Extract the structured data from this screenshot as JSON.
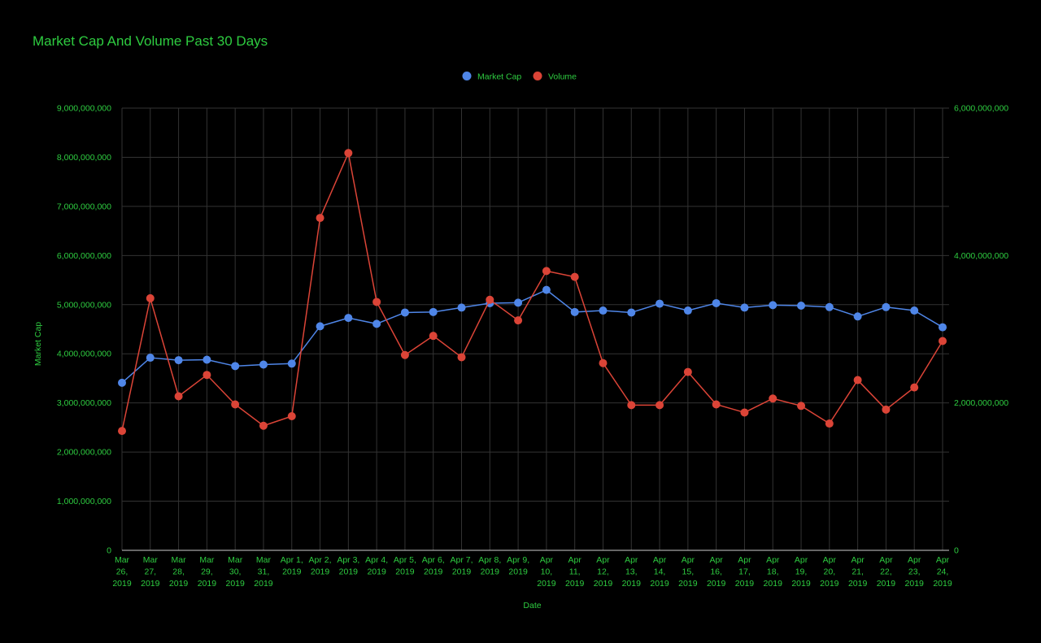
{
  "colors": {
    "background": "#000000",
    "text": "#2ecc40",
    "grid": "#333333",
    "baseline": "#cccccc",
    "market_cap": "#4f86e8",
    "volume": "#db4437"
  },
  "chart_data": {
    "type": "line",
    "title": "Market Cap And Volume Past 30 Days",
    "xlabel": "Date",
    "ylabel": "Market Cap",
    "ylabel_right": "",
    "ylim": [
      0,
      9000000000
    ],
    "ylim_right": [
      0,
      6000000000
    ],
    "yticks": [
      "0",
      "1,000,000,000",
      "2,000,000,000",
      "3,000,000,000",
      "4,000,000,000",
      "5,000,000,000",
      "6,000,000,000",
      "7,000,000,000",
      "8,000,000,000",
      "9,000,000,000"
    ],
    "yticks_right": [
      "0",
      "2,000,000,000",
      "4,000,000,000",
      "6,000,000,000"
    ],
    "legend_position": "top",
    "grid": true,
    "categories": [
      [
        "Mar",
        "26,",
        "2019"
      ],
      [
        "Mar",
        "27,",
        "2019"
      ],
      [
        "Mar",
        "28,",
        "2019"
      ],
      [
        "Mar",
        "29,",
        "2019"
      ],
      [
        "Mar",
        "30,",
        "2019"
      ],
      [
        "Mar",
        "31,",
        "2019"
      ],
      [
        "Apr 1,",
        "2019"
      ],
      [
        "Apr 2,",
        "2019"
      ],
      [
        "Apr 3,",
        "2019"
      ],
      [
        "Apr 4,",
        "2019"
      ],
      [
        "Apr 5,",
        "2019"
      ],
      [
        "Apr 6,",
        "2019"
      ],
      [
        "Apr 7,",
        "2019"
      ],
      [
        "Apr 8,",
        "2019"
      ],
      [
        "Apr 9,",
        "2019"
      ],
      [
        "Apr",
        "10,",
        "2019"
      ],
      [
        "Apr",
        "11,",
        "2019"
      ],
      [
        "Apr",
        "12,",
        "2019"
      ],
      [
        "Apr",
        "13,",
        "2019"
      ],
      [
        "Apr",
        "14,",
        "2019"
      ],
      [
        "Apr",
        "15,",
        "2019"
      ],
      [
        "Apr",
        "16,",
        "2019"
      ],
      [
        "Apr",
        "17,",
        "2019"
      ],
      [
        "Apr",
        "18,",
        "2019"
      ],
      [
        "Apr",
        "19,",
        "2019"
      ],
      [
        "Apr",
        "20,",
        "2019"
      ],
      [
        "Apr",
        "21,",
        "2019"
      ],
      [
        "Apr",
        "22,",
        "2019"
      ],
      [
        "Apr",
        "23,",
        "2019"
      ],
      [
        "Apr",
        "24,",
        "2019"
      ]
    ],
    "series": [
      {
        "name": "Market Cap",
        "axis": "left",
        "values": [
          3410000000,
          3920000000,
          3870000000,
          3880000000,
          3750000000,
          3780000000,
          3800000000,
          4560000000,
          4730000000,
          4610000000,
          4840000000,
          4850000000,
          4940000000,
          5030000000,
          5040000000,
          5300000000,
          4850000000,
          4880000000,
          4840000000,
          5020000000,
          4880000000,
          5030000000,
          4940000000,
          4990000000,
          4980000000,
          4950000000,
          4760000000,
          4950000000,
          4880000000,
          4540000000
        ]
      },
      {
        "name": "Volume",
        "axis": "right",
        "values": [
          1620000000,
          3420000000,
          2090000000,
          2380000000,
          1980000000,
          1690000000,
          1820000000,
          4510000000,
          5390000000,
          3370000000,
          2650000000,
          2910000000,
          2620000000,
          3400000000,
          3120000000,
          3790000000,
          3710000000,
          2540000000,
          1970000000,
          1970000000,
          2420000000,
          1980000000,
          1870000000,
          2060000000,
          1960000000,
          1720000000,
          2310000000,
          1910000000,
          2210000000,
          2840000000
        ]
      }
    ]
  }
}
